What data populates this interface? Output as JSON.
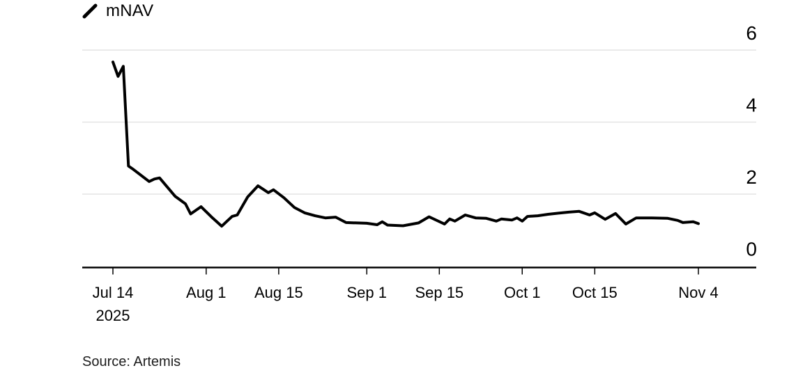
{
  "legend": {
    "label": "mNAV",
    "swatch_icon": "diagonal-line-swatch",
    "swatch_color": "#000000"
  },
  "source_note": "Source: Artemis",
  "chart_data": {
    "type": "line",
    "title": "",
    "legend_position": "top-left",
    "grid": "horizontal-only",
    "colors": {
      "line": "#000000",
      "grid": "#e4e4e4",
      "axis": "#000000",
      "text": "#000000",
      "background": "#ffffff"
    },
    "x_axis": {
      "unit": "date",
      "year_label": "2025",
      "domain_days": [
        0,
        113
      ],
      "ticks": [
        {
          "label": "Jul 14",
          "sublabel": "2025",
          "day": 0
        },
        {
          "label": "Aug 1",
          "day": 18
        },
        {
          "label": "Aug 15",
          "day": 32
        },
        {
          "label": "Sep 1",
          "day": 49
        },
        {
          "label": "Sep 15",
          "day": 63
        },
        {
          "label": "Oct 1",
          "day": 79
        },
        {
          "label": "Oct 15",
          "day": 93
        },
        {
          "label": "Nov 4",
          "day": 113
        }
      ]
    },
    "y_axis": {
      "side": "right",
      "range": [
        0,
        6
      ],
      "ticks": [
        0,
        2,
        4,
        6
      ]
    },
    "series": [
      {
        "name": "mNAV",
        "color": "#000000",
        "points": [
          {
            "date": "Jul 14",
            "day": 0,
            "value": 5.67
          },
          {
            "date": "Jul 15",
            "day": 1,
            "value": 5.27
          },
          {
            "date": "Jul 16",
            "day": 2,
            "value": 5.55
          },
          {
            "date": "Jul 17",
            "day": 3,
            "value": 2.78
          },
          {
            "date": "Jul 18",
            "day": 4,
            "value": 2.68
          },
          {
            "date": "Jul 21",
            "day": 7,
            "value": 2.35
          },
          {
            "date": "Jul 22",
            "day": 8,
            "value": 2.42
          },
          {
            "date": "Jul 23",
            "day": 9,
            "value": 2.45
          },
          {
            "date": "Jul 26",
            "day": 12,
            "value": 1.94
          },
          {
            "date": "Jul 28",
            "day": 14,
            "value": 1.73
          },
          {
            "date": "Jul 29",
            "day": 15,
            "value": 1.45
          },
          {
            "date": "Jul 31",
            "day": 17,
            "value": 1.65
          },
          {
            "date": "Aug 2",
            "day": 19,
            "value": 1.37
          },
          {
            "date": "Aug 4",
            "day": 21,
            "value": 1.11
          },
          {
            "date": "Aug 6",
            "day": 23,
            "value": 1.38
          },
          {
            "date": "Aug 7",
            "day": 24,
            "value": 1.42
          },
          {
            "date": "Aug 9",
            "day": 26,
            "value": 1.92
          },
          {
            "date": "Aug 11",
            "day": 28,
            "value": 2.23
          },
          {
            "date": "Aug 13",
            "day": 30,
            "value": 2.04
          },
          {
            "date": "Aug 14",
            "day": 31,
            "value": 2.12
          },
          {
            "date": "Aug 16",
            "day": 33,
            "value": 1.9
          },
          {
            "date": "Aug 18",
            "day": 35,
            "value": 1.63
          },
          {
            "date": "Aug 20",
            "day": 37,
            "value": 1.48
          },
          {
            "date": "Aug 22",
            "day": 39,
            "value": 1.4
          },
          {
            "date": "Aug 24",
            "day": 41,
            "value": 1.34
          },
          {
            "date": "Aug 26",
            "day": 43,
            "value": 1.36
          },
          {
            "date": "Aug 28",
            "day": 45,
            "value": 1.21
          },
          {
            "date": "Sep 1",
            "day": 49,
            "value": 1.19
          },
          {
            "date": "Sep 3",
            "day": 51,
            "value": 1.15
          },
          {
            "date": "Sep 4",
            "day": 52,
            "value": 1.23
          },
          {
            "date": "Sep 5",
            "day": 53,
            "value": 1.14
          },
          {
            "date": "Sep 8",
            "day": 56,
            "value": 1.12
          },
          {
            "date": "Sep 11",
            "day": 59,
            "value": 1.2
          },
          {
            "date": "Sep 13",
            "day": 61,
            "value": 1.37
          },
          {
            "date": "Sep 16",
            "day": 64,
            "value": 1.17
          },
          {
            "date": "Sep 17",
            "day": 65,
            "value": 1.31
          },
          {
            "date": "Sep 18",
            "day": 66,
            "value": 1.25
          },
          {
            "date": "Sep 20",
            "day": 68,
            "value": 1.42
          },
          {
            "date": "Sep 22",
            "day": 70,
            "value": 1.34
          },
          {
            "date": "Sep 24",
            "day": 72,
            "value": 1.33
          },
          {
            "date": "Sep 26",
            "day": 74,
            "value": 1.25
          },
          {
            "date": "Sep 27",
            "day": 75,
            "value": 1.31
          },
          {
            "date": "Sep 29",
            "day": 77,
            "value": 1.28
          },
          {
            "date": "Sep 30",
            "day": 78,
            "value": 1.34
          },
          {
            "date": "Oct 1",
            "day": 79,
            "value": 1.25
          },
          {
            "date": "Oct 2",
            "day": 80,
            "value": 1.38
          },
          {
            "date": "Oct 4",
            "day": 82,
            "value": 1.4
          },
          {
            "date": "Oct 6",
            "day": 84,
            "value": 1.44
          },
          {
            "date": "Oct 8",
            "day": 86,
            "value": 1.47
          },
          {
            "date": "Oct 10",
            "day": 88,
            "value": 1.5
          },
          {
            "date": "Oct 12",
            "day": 90,
            "value": 1.52
          },
          {
            "date": "Oct 14",
            "day": 92,
            "value": 1.42
          },
          {
            "date": "Oct 15",
            "day": 93,
            "value": 1.48
          },
          {
            "date": "Oct 17",
            "day": 95,
            "value": 1.3
          },
          {
            "date": "Oct 19",
            "day": 97,
            "value": 1.46
          },
          {
            "date": "Oct 21",
            "day": 99,
            "value": 1.17
          },
          {
            "date": "Oct 23",
            "day": 101,
            "value": 1.34
          },
          {
            "date": "Oct 26",
            "day": 104,
            "value": 1.34
          },
          {
            "date": "Oct 29",
            "day": 107,
            "value": 1.33
          },
          {
            "date": "Oct 31",
            "day": 109,
            "value": 1.27
          },
          {
            "date": "Nov 1",
            "day": 110,
            "value": 1.21
          },
          {
            "date": "Nov 3",
            "day": 112,
            "value": 1.23
          },
          {
            "date": "Nov 4",
            "day": 113,
            "value": 1.18
          }
        ]
      }
    ]
  }
}
